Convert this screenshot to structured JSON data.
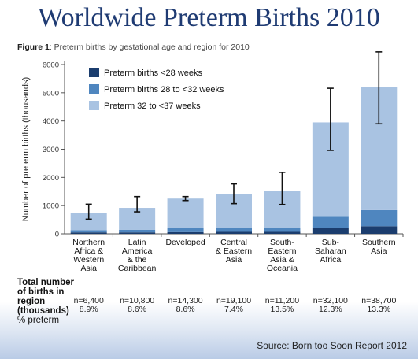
{
  "slide": {
    "title": "Worldwide Preterm Births 2010",
    "source": "Source: Born too Soon Report 2012"
  },
  "figure": {
    "label": "Figure 1",
    "caption_text": ": Preterm births by gestational age and region for 2010"
  },
  "table": {
    "heading": "Total number of births in region (thousands)",
    "subheading": "% preterm"
  },
  "colors": {
    "under28": "#1b3d6e",
    "w28to32": "#4f86bf",
    "w32to37": "#a9c3e2",
    "axis": "#555555",
    "whisker": "#111111"
  },
  "chart_data": {
    "type": "bar",
    "stacked": true,
    "ylabel": "Number of preterm births (thousands)",
    "ylim": [
      0,
      6000
    ],
    "yticks": [
      0,
      1000,
      2000,
      3000,
      4000,
      5000,
      6000
    ],
    "grid": false,
    "legend_position": "top-left",
    "categories": [
      "Northern Africa & Western Asia",
      "Latin America & the Caribbean",
      "Developed",
      "Central & Eastern Asia",
      "South-Eastern Asia & Oceania",
      "Sub-Saharan Africa",
      "Southern Asia"
    ],
    "category_lines": [
      [
        "Northern",
        "Africa &",
        "Western",
        "Asia"
      ],
      [
        "Latin",
        "America",
        "& the",
        "Caribbean"
      ],
      [
        "Developed"
      ],
      [
        "Central",
        "& Eastern",
        "Asia"
      ],
      [
        "South-",
        "Eastern",
        "Asia &",
        "Oceania"
      ],
      [
        "Sub-",
        "Saharan",
        "Africa"
      ],
      [
        "Southern",
        "Asia"
      ]
    ],
    "series": [
      {
        "name": "Preterm births <28 weeks",
        "values": [
          50,
          50,
          60,
          70,
          70,
          200,
          270
        ]
      },
      {
        "name": "Preterm births 28 to <32 weeks",
        "values": [
          80,
          90,
          140,
          140,
          150,
          430,
          570
        ]
      },
      {
        "name": "Preterm 32 to <37 weeks",
        "values": [
          620,
          780,
          1050,
          1210,
          1310,
          3320,
          4360
        ]
      }
    ],
    "error_bars": [
      {
        "low": 520,
        "high": 1050
      },
      {
        "low": 780,
        "high": 1320
      },
      {
        "low": 1180,
        "high": 1320
      },
      {
        "low": 1070,
        "high": 1770
      },
      {
        "low": 1040,
        "high": 2180
      },
      {
        "low": 2960,
        "high": 5160
      },
      {
        "low": 3900,
        "high": 6450
      }
    ],
    "totals": [
      "n=6,400",
      "n=10,800",
      "n=14,300",
      "n=19,100",
      "n=11,200",
      "n=32,100",
      "n=38,700"
    ],
    "percent_preterm": [
      "8.9%",
      "8.6%",
      "8.6%",
      "7.4%",
      "13.5%",
      "12.3%",
      "13.3%"
    ]
  }
}
